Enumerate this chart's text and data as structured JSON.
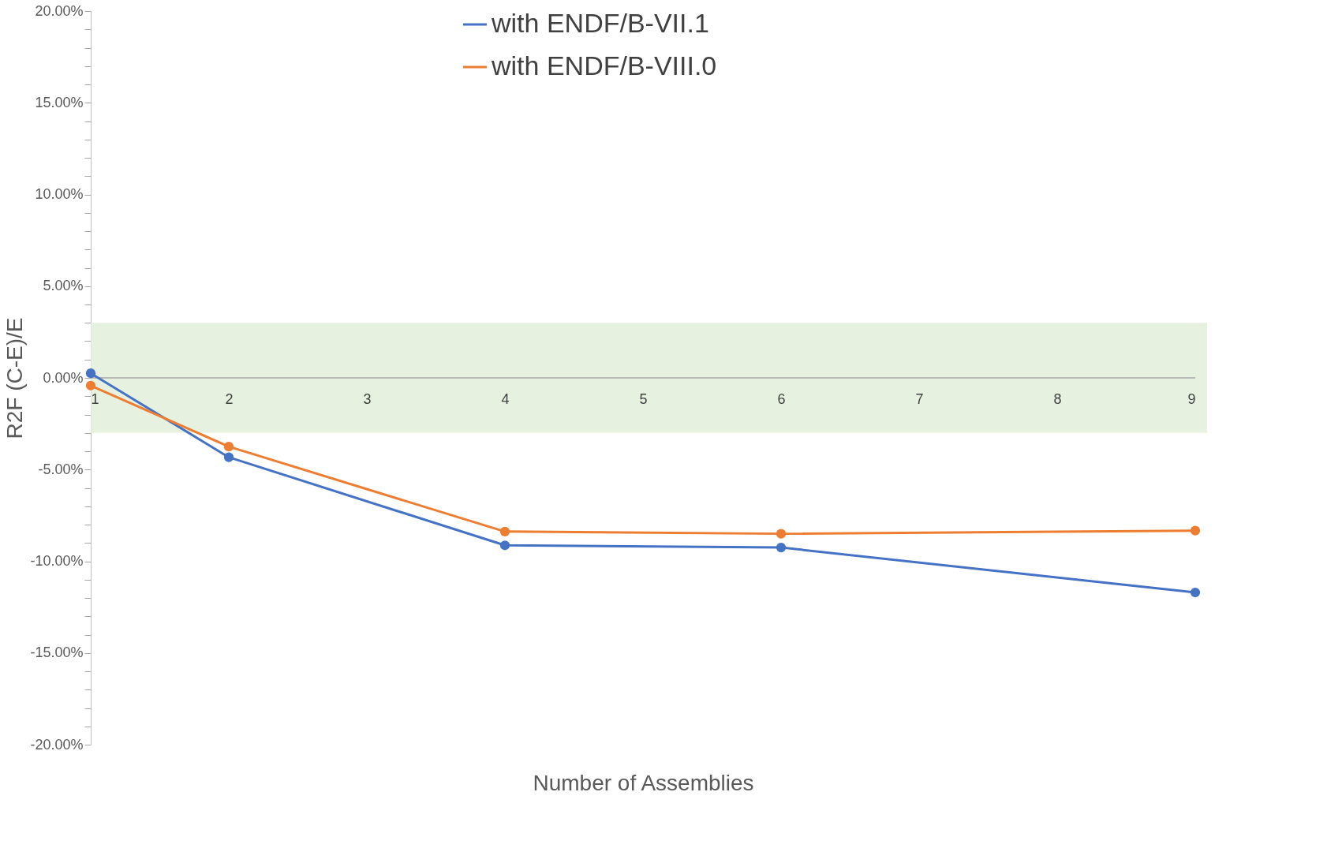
{
  "chart_data": {
    "type": "line",
    "xlabel": "Number of Assemblies",
    "ylabel": "R2F (C-E)/E",
    "x": [
      1,
      2,
      4,
      6,
      9
    ],
    "series": [
      {
        "name": "with ENDF/B-VII.1",
        "color": "#4472c4",
        "values": [
          0.25,
          -4.33,
          -9.13,
          -9.25,
          -11.7
        ]
      },
      {
        "name": "with ENDF/B-VIII.0",
        "color": "#ed7d31",
        "values": [
          -0.42,
          -3.75,
          -8.38,
          -8.5,
          -8.33
        ]
      }
    ],
    "xlim": [
      1,
      9
    ],
    "xticks": [
      1,
      2,
      3,
      4,
      5,
      6,
      7,
      8,
      9
    ],
    "ylim": [
      -20,
      20
    ],
    "yticks": [
      {
        "value": -20,
        "label": "-20.00%"
      },
      {
        "value": -19,
        "label": null
      },
      {
        "value": -18,
        "label": null
      },
      {
        "value": -17,
        "label": null
      },
      {
        "value": -16,
        "label": null
      },
      {
        "value": -15,
        "label": "-15.00%"
      },
      {
        "value": -14,
        "label": null
      },
      {
        "value": -13,
        "label": null
      },
      {
        "value": -12,
        "label": null
      },
      {
        "value": -11,
        "label": null
      },
      {
        "value": -10,
        "label": "-10.00%"
      },
      {
        "value": -9,
        "label": null
      },
      {
        "value": -8,
        "label": null
      },
      {
        "value": -7,
        "label": null
      },
      {
        "value": -6,
        "label": null
      },
      {
        "value": -5,
        "label": "-5.00%"
      },
      {
        "value": -4,
        "label": null
      },
      {
        "value": -3,
        "label": null
      },
      {
        "value": -2,
        "label": null
      },
      {
        "value": -1,
        "label": null
      },
      {
        "value": 0,
        "label": "0.00%"
      },
      {
        "value": 1,
        "label": null
      },
      {
        "value": 2,
        "label": null
      },
      {
        "value": 3,
        "label": null
      },
      {
        "value": 4,
        "label": null
      },
      {
        "value": 5,
        "label": "5.00%"
      },
      {
        "value": 6,
        "label": null
      },
      {
        "value": 7,
        "label": null
      },
      {
        "value": 8,
        "label": null
      },
      {
        "value": 9,
        "label": null
      },
      {
        "value": 10,
        "label": "10.00%"
      },
      {
        "value": 11,
        "label": null
      },
      {
        "value": 12,
        "label": null
      },
      {
        "value": 13,
        "label": null
      },
      {
        "value": 14,
        "label": null
      },
      {
        "value": 15,
        "label": "15.00%"
      },
      {
        "value": 16,
        "label": null
      },
      {
        "value": 17,
        "label": null
      },
      {
        "value": 18,
        "label": null
      },
      {
        "value": 19,
        "label": null
      },
      {
        "value": 20,
        "label": "20.00%"
      }
    ],
    "bands": [
      {
        "axis": "y",
        "from": -3,
        "to": 3,
        "color": "#e2f0d9"
      }
    ],
    "grid": false,
    "legend": "top",
    "marker": "circle",
    "line_style": "solid"
  }
}
